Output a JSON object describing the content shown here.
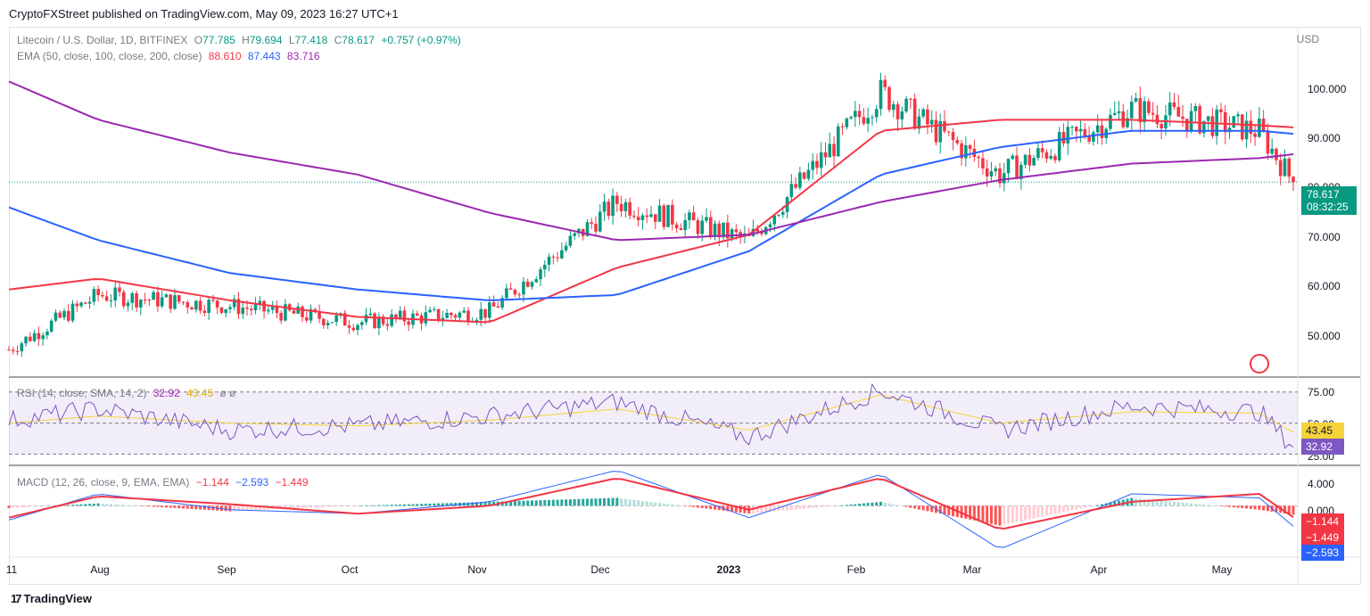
{
  "header": {
    "published": "CryptoFXStreet published on TradingView.com, May 09, 2023 16:27 UTC+1"
  },
  "legend": {
    "symbol": "Litecoin / U.S. Dollar, 1D, BITFINEX",
    "o_label": "O",
    "o": "77.785",
    "h_label": "H",
    "h": "79.694",
    "l_label": "L",
    "l": "77.418",
    "c_label": "C",
    "c": "78.617",
    "change": "+0.757 (+0.97%)",
    "ema_label": "EMA (50, close, 100, close, 200, close)",
    "ema50": "88.610",
    "ema100": "87.443",
    "ema200": "83.716",
    "rsi_label": "RSI (14, close, SMA, 14, 2)",
    "rsi": "32.92",
    "rsi_ma": "43.45",
    "rsi_extra": "ø  ø",
    "macd_label": "MACD (12, 26, close, 9, EMA, EMA)",
    "macd_hist": "−1.144",
    "macd_line": "−2.593",
    "macd_signal": "−1.449"
  },
  "price_axis": {
    "unit": "USD",
    "ticks": [
      "100.000",
      "90.000",
      "80.000",
      "70.000",
      "60.000",
      "50.000"
    ]
  },
  "rsi_axis": {
    "ticks": [
      "75.00",
      "50.00",
      "25.00"
    ]
  },
  "macd_axis": {
    "ticks": [
      "4.000",
      "0.000"
    ]
  },
  "tags": {
    "price": "78.617",
    "countdown": "08:32:25",
    "rsi_ma": "43.45",
    "rsi": "32.92",
    "macd_hist": "−1.144",
    "macd_signal": "−1.449",
    "macd_line": "−2.593"
  },
  "x_axis": [
    "11",
    "Aug",
    "Sep",
    "Oct",
    "Nov",
    "Dec",
    "2023",
    "Feb",
    "Mar",
    "Apr",
    "May"
  ],
  "footer": {
    "brand": "TradingView",
    "logo": "17"
  },
  "colors": {
    "up": "#089981",
    "down": "#f23645",
    "ema50": "#f23645",
    "ema100": "#2962ff",
    "ema200": "#9c27b0",
    "rsi": "#7e57c2",
    "rsi_ma": "#f5d33b",
    "macd": "#2962ff",
    "signal": "#f23645"
  },
  "chart_data": [
    {
      "type": "candlestick",
      "title": "Litecoin / U.S. Dollar, 1D, BITFINEX",
      "ylabel": "USD",
      "ylim": [
        43,
        107
      ],
      "x": [
        "2022-07-11",
        "2022-08-01",
        "2022-09-01",
        "2022-10-01",
        "2022-11-01",
        "2022-12-01",
        "2023-01-01",
        "2023-02-01",
        "2023-03-01",
        "2023-04-01",
        "2023-05-01",
        "2023-05-09"
      ],
      "close_approx": [
        48,
        58,
        56,
        53,
        55,
        75,
        68,
        95,
        80,
        92,
        88,
        78.617
      ],
      "last_close": 78.617,
      "series": [
        {
          "name": "EMA 50",
          "values": [
            59,
            61,
            57,
            54,
            53,
            63,
            69,
            88,
            90,
            90,
            89,
            88.61
          ]
        },
        {
          "name": "EMA 100",
          "values": [
            74,
            68,
            62,
            59,
            57,
            58,
            66,
            80,
            85,
            88,
            88,
            87.443
          ]
        },
        {
          "name": "EMA 200",
          "values": [
            97,
            90,
            84,
            80,
            73,
            68,
            69,
            75,
            79,
            82,
            83,
            83.716
          ]
        }
      ]
    },
    {
      "type": "line",
      "title": "RSI (14, close, SMA, 14, 2)",
      "ylim": [
        20,
        82
      ],
      "x": [
        "2022-07-11",
        "2022-08-01",
        "2022-09-01",
        "2022-10-01",
        "2022-11-01",
        "2022-12-01",
        "2023-01-01",
        "2023-02-01",
        "2023-03-01",
        "2023-04-01",
        "2023-05-01",
        "2023-05-09"
      ],
      "series": [
        {
          "name": "RSI",
          "values": [
            52,
            60,
            45,
            48,
            55,
            65,
            40,
            73,
            45,
            62,
            58,
            32.92
          ]
        },
        {
          "name": "RSI MA",
          "values": [
            50,
            55,
            50,
            48,
            52,
            60,
            45,
            70,
            50,
            58,
            57,
            43.45
          ]
        }
      ]
    },
    {
      "type": "bar",
      "title": "MACD (12, 26, close, 9, EMA, EMA)",
      "ylim": [
        -6.5,
        5.0
      ],
      "x": [
        "2022-07-11",
        "2022-08-01",
        "2022-09-01",
        "2022-10-01",
        "2022-11-01",
        "2022-12-01",
        "2023-01-01",
        "2023-02-01",
        "2023-03-01",
        "2023-04-01",
        "2023-05-01",
        "2023-05-09"
      ],
      "series": [
        {
          "name": "MACD",
          "values": [
            -1.8,
            1.5,
            -0.5,
            -1.0,
            0.5,
            4.5,
            -1.5,
            4.0,
            -5.5,
            1.5,
            1.0,
            -2.593
          ]
        },
        {
          "name": "Signal",
          "values": [
            -1.5,
            1.2,
            0.2,
            -1.0,
            0.0,
            3.5,
            -0.5,
            3.5,
            -3.0,
            0.5,
            1.5,
            -1.449
          ]
        },
        {
          "name": "Histogram",
          "values": [
            -0.3,
            0.3,
            -0.7,
            0.0,
            0.5,
            1.0,
            -1.0,
            0.5,
            -2.5,
            1.0,
            -0.5,
            -1.144
          ]
        }
      ]
    }
  ]
}
